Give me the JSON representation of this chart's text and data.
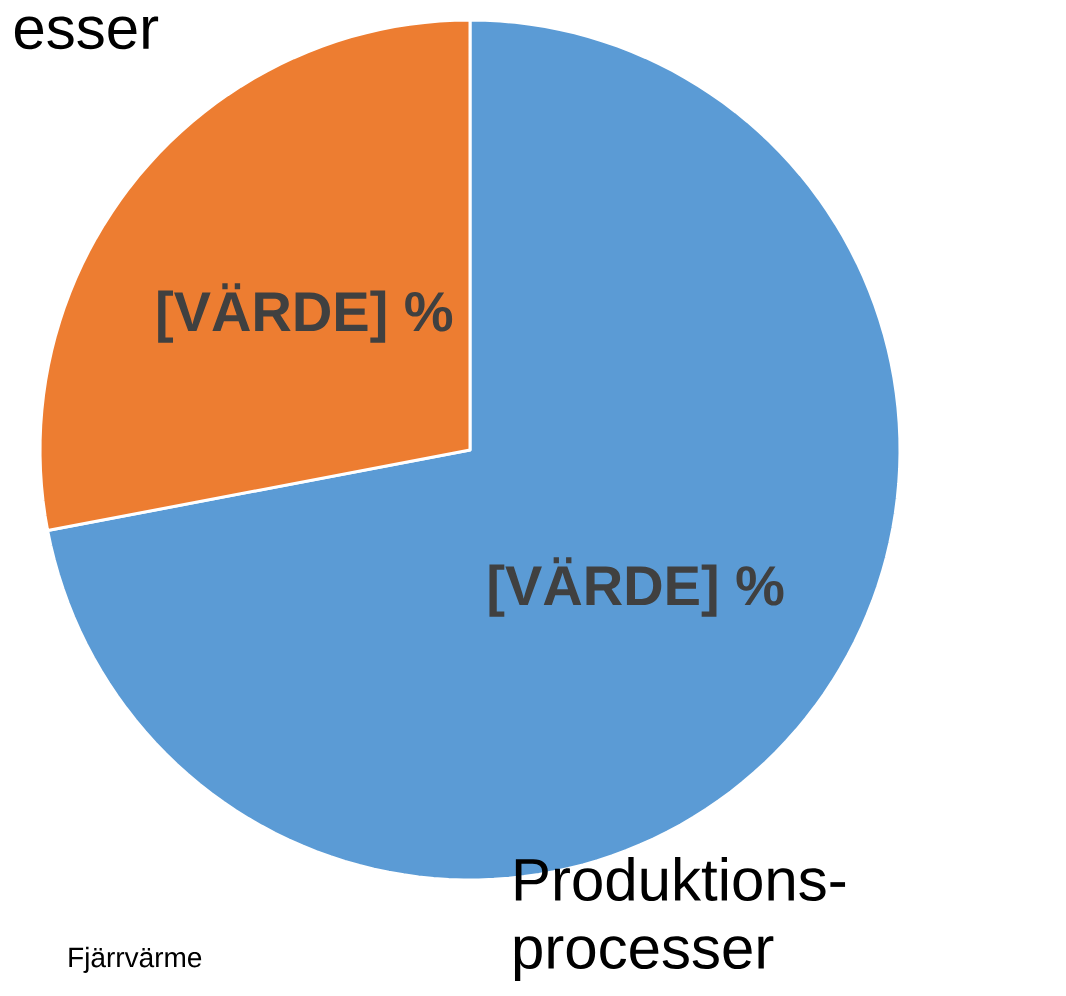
{
  "chart_data": {
    "type": "pie",
    "categories": [
      "Produktions-processer",
      "esser"
    ],
    "values": [
      72,
      28
    ],
    "colors": [
      "#5b9bd5",
      "#ed7d31"
    ],
    "value_labels": [
      "[VÄRDE] %",
      "[VÄRDE] %"
    ],
    "annotations": [
      "Fjärrvärme"
    ]
  }
}
